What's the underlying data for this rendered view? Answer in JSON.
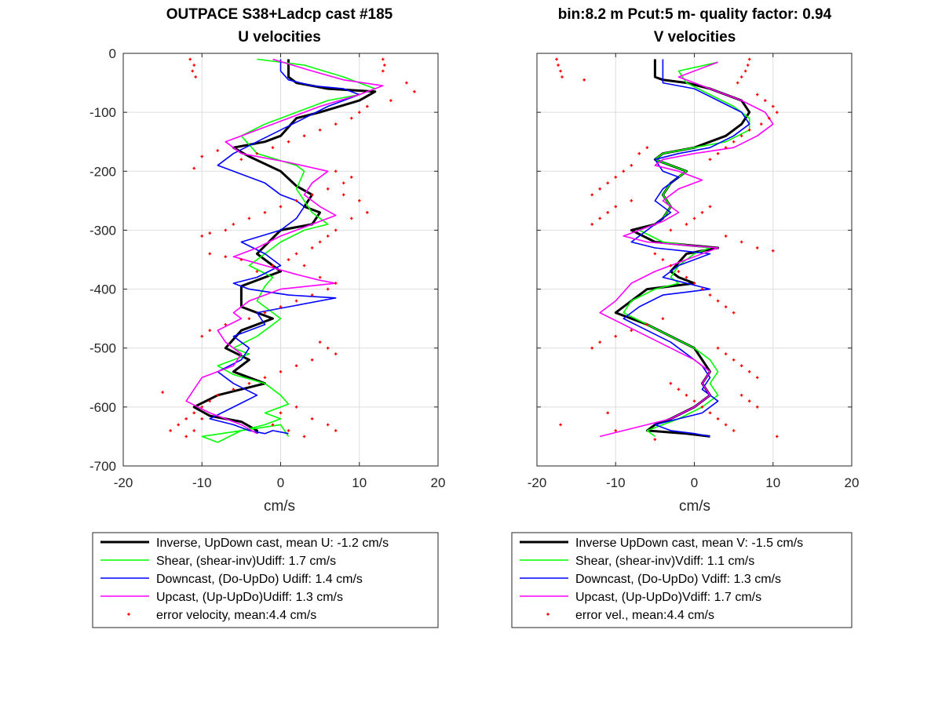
{
  "colors": {
    "inverse": "#000000",
    "shear": "#00ff00",
    "downcast": "#0000ff",
    "upcast": "#ff00ff",
    "error": "#ff0000",
    "grid": "#dedede"
  },
  "chart_data": [
    {
      "type": "line",
      "title": "OUTPACE S38+Ladcp cast #185",
      "subtitle": "U velocities",
      "xlabel": "cm/s",
      "ylabel": "",
      "xlim": [
        -20,
        20
      ],
      "ylim": [
        -700,
        0
      ],
      "xticks": [
        -20,
        -10,
        0,
        10,
        20
      ],
      "yticks": [
        0,
        -100,
        -200,
        -300,
        -400,
        -500,
        -600,
        -700
      ],
      "grid": true,
      "legend_position": "below",
      "series": [
        {
          "key": "inverse",
          "name": "Inverse, UpDown cast, mean U:  -1.2 cm/s",
          "width": 3,
          "x": [
            1,
            1,
            2,
            6,
            12,
            10,
            5,
            2,
            0,
            -2,
            -6,
            -4,
            0,
            2,
            4,
            3,
            5,
            4,
            0,
            -3,
            0,
            -2,
            -5,
            -5,
            -1,
            -5,
            -7,
            -4,
            -6,
            -2,
            -5,
            -8,
            -11,
            -9,
            -5,
            -3,
            -3
          ],
          "y": [
            -10,
            -40,
            -50,
            -60,
            -65,
            -80,
            -100,
            -110,
            -140,
            -150,
            -160,
            -175,
            -200,
            -225,
            -240,
            -260,
            -270,
            -290,
            -300,
            -340,
            -370,
            -380,
            -395,
            -430,
            -450,
            -470,
            -500,
            -520,
            -540,
            -560,
            -570,
            -580,
            -600,
            -615,
            -625,
            -640,
            -645
          ]
        },
        {
          "key": "shear",
          "name": "Shear, (shear-inv)Udiff:  1.7 cm/s",
          "width": 1.6,
          "x": [
            -3,
            3,
            8,
            12,
            10,
            6,
            2,
            -2,
            -5,
            -3,
            2,
            3,
            2,
            3,
            4,
            6,
            3,
            0,
            -2,
            -4,
            -1,
            -2,
            -3,
            -1,
            0,
            -1,
            -3,
            -6,
            -4,
            -8,
            -6,
            -2,
            0,
            1,
            -2,
            0,
            -2,
            -5,
            -10,
            -8,
            -5,
            0,
            1
          ],
          "y": [
            -10,
            -20,
            -40,
            -60,
            -70,
            -80,
            -100,
            -120,
            -140,
            -170,
            -190,
            -200,
            -230,
            -250,
            -270,
            -290,
            -300,
            -320,
            -340,
            -360,
            -380,
            -395,
            -420,
            -440,
            -450,
            -460,
            -480,
            -500,
            -510,
            -530,
            -545,
            -560,
            -580,
            -595,
            -610,
            -620,
            -630,
            -640,
            -650,
            -660,
            -640,
            -630,
            -650
          ]
        },
        {
          "key": "downcast",
          "name": "Downcast, (Do-UpDo) Udiff:  1.4 cm/s",
          "width": 1.6,
          "x": [
            0,
            0,
            1,
            4,
            8,
            10,
            6,
            3,
            0,
            -3,
            -6,
            -8,
            -6,
            -2,
            0,
            2,
            3,
            2,
            0,
            -5,
            -2,
            0,
            -3,
            -6,
            -4,
            1,
            7,
            1,
            -3,
            -2,
            -6,
            -4,
            -5,
            -8,
            -6,
            -3,
            -6,
            -9,
            -6,
            -4,
            -2,
            -1,
            1
          ],
          "y": [
            -10,
            -30,
            -45,
            -55,
            -60,
            -70,
            -90,
            -110,
            -130,
            -150,
            -170,
            -190,
            -200,
            -220,
            -240,
            -250,
            -260,
            -280,
            -300,
            -320,
            -340,
            -360,
            -380,
            -390,
            -400,
            -410,
            -415,
            -430,
            -440,
            -460,
            -480,
            -500,
            -520,
            -540,
            -560,
            -580,
            -600,
            -620,
            -630,
            -640,
            -645,
            -640,
            -645
          ]
        },
        {
          "key": "upcast",
          "name": "Upcast, (Up-UpDo)Udiff:  1.3 cm/s",
          "width": 1.6,
          "x": [
            -1,
            4,
            8,
            13,
            10,
            5,
            1,
            -3,
            -7,
            -5,
            1,
            6,
            4,
            3,
            5,
            7,
            4,
            0,
            -3,
            -6,
            -2,
            2,
            5,
            7,
            0,
            -4,
            -6,
            -5,
            -8,
            -7,
            -5,
            -6,
            -10,
            -11,
            -12,
            -9,
            -5,
            -3
          ],
          "y": [
            -10,
            -30,
            -45,
            -55,
            -70,
            -90,
            -110,
            -130,
            -150,
            -170,
            -185,
            -200,
            -220,
            -240,
            -260,
            -275,
            -290,
            -310,
            -330,
            -345,
            -360,
            -375,
            -385,
            -390,
            -400,
            -420,
            -440,
            -450,
            -470,
            -490,
            -510,
            -530,
            -550,
            -570,
            -590,
            -610,
            -630,
            -645
          ]
        },
        {
          "key": "error",
          "name": "error velocity, mean:4.4 cm/s",
          "scatter": true,
          "x": [
            -11.5,
            -11,
            -11.2,
            -10.8,
            13,
            13.2,
            13,
            16,
            17,
            14,
            11,
            10,
            9,
            7,
            5,
            3,
            1,
            -1,
            -3,
            -5,
            -8,
            -10,
            -11,
            7,
            9,
            8,
            6,
            4,
            2,
            0,
            -2,
            -4,
            -6,
            -7,
            -9,
            -10,
            5,
            7,
            9,
            10,
            8,
            11,
            6,
            4,
            2,
            1,
            -1,
            -3,
            -5,
            -7,
            -9,
            3,
            5,
            7,
            6,
            4,
            2,
            0,
            -2,
            -4,
            -7,
            -9,
            -10,
            5,
            6,
            7,
            4,
            2,
            0,
            -2,
            -4,
            -6,
            -8,
            -9,
            -10,
            -11,
            -12,
            -13,
            -14,
            -15,
            2,
            0,
            -1,
            1,
            3,
            4,
            6,
            7,
            -12,
            -11,
            -10
          ],
          "y": [
            -10,
            -20,
            -30,
            -40,
            -10,
            -20,
            -30,
            -50,
            -65,
            -80,
            -90,
            -100,
            -110,
            -120,
            -130,
            -140,
            -150,
            -160,
            -170,
            -180,
            -165,
            -175,
            -195,
            -200,
            -210,
            -220,
            -230,
            -240,
            -250,
            -260,
            -270,
            -280,
            -290,
            -300,
            -305,
            -310,
            -320,
            -300,
            -280,
            -250,
            -240,
            -270,
            -310,
            -330,
            -340,
            -350,
            -360,
            -370,
            -350,
            -345,
            -340,
            -360,
            -380,
            -390,
            -400,
            -410,
            -420,
            -430,
            -440,
            -450,
            -460,
            -470,
            -480,
            -490,
            -500,
            -510,
            -520,
            -530,
            -540,
            -550,
            -560,
            -570,
            -580,
            -590,
            -600,
            -610,
            -620,
            -630,
            -640,
            -575,
            -600,
            -610,
            -630,
            -640,
            -650,
            -620,
            -630,
            -640,
            -650,
            -640,
            -620
          ]
        }
      ]
    },
    {
      "type": "line",
      "title": "bin:8.2 m  Pcut:5 m- quality factor:  0.94",
      "subtitle": "V velocities",
      "xlabel": "cm/s",
      "ylabel": "",
      "xlim": [
        -20,
        20
      ],
      "ylim": [
        -700,
        0
      ],
      "xticks": [
        -20,
        -10,
        0,
        10,
        20
      ],
      "yticks": [],
      "grid": true,
      "legend_position": "below",
      "series": [
        {
          "key": "inverse",
          "name": "Inverse UpDown cast, mean V:  -1.5 cm/s",
          "width": 3,
          "x": [
            -5,
            -5,
            -4,
            -1,
            2,
            6,
            7,
            6,
            4,
            0,
            -4,
            -5,
            -3,
            -1,
            -3,
            -4,
            -3,
            -4,
            -5,
            -8,
            -5,
            3,
            -1,
            -3,
            -2,
            0,
            -6,
            -8,
            -10,
            -6,
            -3,
            0,
            1,
            2,
            1,
            2,
            0,
            -3,
            -5,
            -6,
            -1,
            2
          ],
          "y": [
            -10,
            -40,
            -45,
            -50,
            -60,
            -80,
            -100,
            -120,
            -140,
            -160,
            -170,
            -180,
            -190,
            -200,
            -220,
            -240,
            -260,
            -280,
            -290,
            -300,
            -320,
            -330,
            -340,
            -370,
            -380,
            -390,
            -400,
            -420,
            -440,
            -460,
            -480,
            -500,
            -520,
            -540,
            -560,
            -580,
            -600,
            -620,
            -630,
            -640,
            -645,
            -650
          ]
        },
        {
          "key": "shear",
          "name": "Shear, (shear-inv)Vdiff:  1.1 cm/s",
          "width": 1.6,
          "x": [
            3,
            -2,
            -1,
            2,
            5,
            7,
            7,
            4,
            0,
            -4,
            -5,
            -3,
            -1,
            -3,
            -4,
            -3,
            -4,
            -5,
            -7,
            -4,
            2,
            0,
            -2,
            -3,
            -2,
            -5,
            -8,
            -9,
            -6,
            -3,
            0,
            2,
            3,
            2,
            3,
            1,
            -2,
            -4,
            -6,
            -5
          ],
          "y": [
            -15,
            -30,
            -50,
            -70,
            -90,
            -110,
            -130,
            -150,
            -160,
            -170,
            -180,
            -190,
            -200,
            -220,
            -240,
            -260,
            -280,
            -290,
            -300,
            -320,
            -330,
            -340,
            -360,
            -380,
            -390,
            -400,
            -420,
            -440,
            -460,
            -480,
            -500,
            -520,
            -540,
            -560,
            -580,
            -600,
            -620,
            -630,
            -640,
            -650
          ]
        },
        {
          "key": "downcast",
          "name": "Downcast, (Do-UpDo) Vdiff:  1.3 cm/s",
          "width": 1.6,
          "x": [
            -4,
            -4,
            -4,
            0,
            3,
            6,
            7,
            5,
            2,
            -2,
            -5,
            -4,
            -2,
            -4,
            -5,
            -3,
            -5,
            -6,
            -8,
            -5,
            2,
            -2,
            -4,
            2,
            -4,
            -7,
            -9,
            -6,
            -3,
            -1,
            1,
            2,
            1,
            3,
            1,
            -2,
            -5,
            -3,
            0,
            2
          ],
          "y": [
            -10,
            -40,
            -50,
            -60,
            -80,
            -100,
            -120,
            -140,
            -160,
            -170,
            -180,
            -200,
            -210,
            -230,
            -250,
            -270,
            -290,
            -300,
            -320,
            -330,
            -340,
            -360,
            -380,
            -400,
            -410,
            -430,
            -450,
            -470,
            -490,
            -510,
            -530,
            -550,
            -570,
            -590,
            -610,
            -620,
            -630,
            -640,
            -645,
            -650
          ]
        },
        {
          "key": "upcast",
          "name": "Upcast, (Up-UpDo)Vdiff:  1.7 cm/s",
          "width": 1.6,
          "x": [
            3,
            0,
            -2,
            2,
            6,
            9,
            10,
            8,
            5,
            0,
            -4,
            -5,
            -2,
            1,
            -2,
            -4,
            -2,
            -4,
            -6,
            -9,
            -6,
            3,
            -1,
            -5,
            -8,
            -10,
            -12,
            -9,
            -6,
            -3,
            0,
            2,
            1,
            2,
            0,
            -3,
            -6,
            -9,
            -12
          ],
          "y": [
            -15,
            -30,
            -40,
            -60,
            -80,
            -100,
            -120,
            -140,
            -160,
            -170,
            -180,
            -190,
            -200,
            -215,
            -230,
            -250,
            -270,
            -285,
            -295,
            -310,
            -320,
            -330,
            -350,
            -370,
            -390,
            -420,
            -440,
            -460,
            -480,
            -500,
            -520,
            -540,
            -560,
            -580,
            -600,
            -620,
            -630,
            -640,
            -650
          ]
        },
        {
          "key": "error",
          "name": "error vel., mean:4.4 cm/s",
          "scatter": true,
          "x": [
            -17.5,
            -17.3,
            -17,
            -16.8,
            7,
            6.8,
            6.5,
            6,
            5.5,
            -14,
            8,
            9,
            10,
            10.5,
            9.5,
            8.5,
            7,
            6,
            5,
            4,
            3,
            2,
            -6,
            -7,
            -8,
            -9,
            -10,
            -11,
            -12,
            -13,
            -8,
            -10,
            -11,
            -12,
            -13,
            -3,
            -1,
            0,
            1,
            2,
            4,
            6,
            8,
            10,
            -5,
            -4,
            -3,
            -2,
            -1,
            0,
            1,
            2,
            3,
            4,
            5,
            -4,
            -6,
            -8,
            -10,
            -12,
            -13,
            3,
            4,
            5,
            6,
            7,
            8,
            -3,
            -2,
            -1,
            0,
            1,
            2,
            3,
            4,
            5,
            6,
            7,
            8,
            -11,
            -10,
            -17,
            10.5,
            -5
          ],
          "y": [
            -10,
            -20,
            -30,
            -40,
            -10,
            -20,
            -30,
            -40,
            -50,
            -45,
            -70,
            -80,
            -90,
            -100,
            -110,
            -120,
            -130,
            -140,
            -150,
            -160,
            -170,
            -180,
            -160,
            -170,
            -190,
            -200,
            -210,
            -220,
            -230,
            -240,
            -250,
            -260,
            -270,
            -280,
            -290,
            -300,
            -290,
            -280,
            -270,
            -260,
            -310,
            -320,
            -330,
            -335,
            -340,
            -350,
            -360,
            -370,
            -380,
            -390,
            -400,
            -410,
            -420,
            -430,
            -440,
            -450,
            -460,
            -470,
            -480,
            -490,
            -500,
            -500,
            -510,
            -520,
            -530,
            -540,
            -550,
            -560,
            -570,
            -580,
            -590,
            -600,
            -610,
            -620,
            -630,
            -640,
            -580,
            -590,
            -600,
            -610,
            -640,
            -630,
            -650,
            -655
          ]
        }
      ]
    }
  ]
}
